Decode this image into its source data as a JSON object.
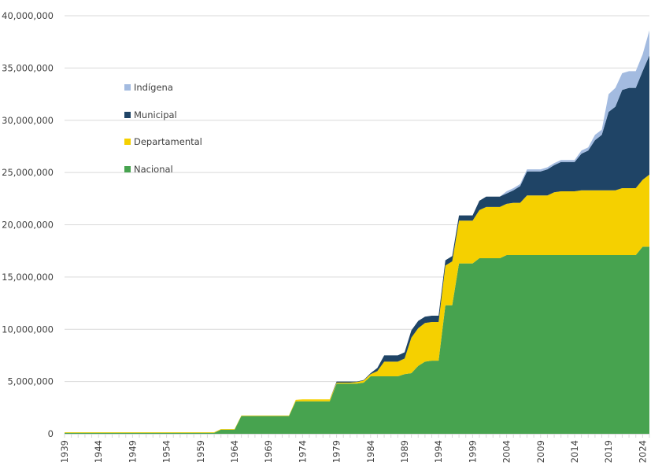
{
  "chart_data": {
    "type": "area",
    "stacked": true,
    "title": "",
    "xlabel": "",
    "ylabel": "",
    "ylim": [
      0,
      40000000
    ],
    "yticks": [
      0,
      5000000,
      10000000,
      15000000,
      20000000,
      25000000,
      30000000,
      35000000,
      40000000
    ],
    "ytick_labels": [
      "0",
      "5,000,000",
      "10,000,000",
      "15,000,000",
      "20,000,000",
      "25,000,000",
      "30,000,000",
      "35,000,000",
      "40,000,000"
    ],
    "xlim": [
      1939,
      2025
    ],
    "xtick_labels": [
      "1939",
      "1944",
      "1949",
      "1954",
      "1959",
      "1964",
      "1969",
      "1974",
      "1979",
      "1984",
      "1989",
      "1994",
      "1999",
      "2004",
      "2009",
      "2014",
      "2019",
      "2024"
    ],
    "grid": "horizontal",
    "legend_position": "upper-left inside",
    "legend": [
      "Indígena",
      "Municipal",
      "Departamental",
      "Nacional"
    ],
    "x": [
      1939,
      1940,
      1941,
      1942,
      1943,
      1944,
      1945,
      1946,
      1947,
      1948,
      1949,
      1950,
      1951,
      1952,
      1953,
      1954,
      1955,
      1956,
      1957,
      1958,
      1959,
      1960,
      1961,
      1962,
      1963,
      1964,
      1965,
      1966,
      1967,
      1968,
      1969,
      1970,
      1971,
      1972,
      1973,
      1974,
      1975,
      1976,
      1977,
      1978,
      1979,
      1980,
      1981,
      1982,
      1983,
      1984,
      1985,
      1986,
      1987,
      1988,
      1989,
      1990,
      1991,
      1992,
      1993,
      1994,
      1995,
      1996,
      1997,
      1998,
      1999,
      2000,
      2001,
      2002,
      2003,
      2004,
      2005,
      2006,
      2007,
      2008,
      2009,
      2010,
      2011,
      2012,
      2013,
      2014,
      2015,
      2016,
      2017,
      2018,
      2019,
      2020,
      2021,
      2022,
      2023,
      2024,
      2025
    ],
    "series": [
      {
        "name": "Nacional",
        "color": "#47a34f",
        "values_millions": [
          0.1,
          0.1,
          0.1,
          0.1,
          0.1,
          0.1,
          0.1,
          0.1,
          0.1,
          0.1,
          0.1,
          0.1,
          0.1,
          0.1,
          0.1,
          0.1,
          0.1,
          0.1,
          0.1,
          0.1,
          0.1,
          0.1,
          0.1,
          0.4,
          0.4,
          0.4,
          1.7,
          1.7,
          1.7,
          1.7,
          1.7,
          1.7,
          1.7,
          1.7,
          3.1,
          3.1,
          3.1,
          3.1,
          3.1,
          3.1,
          4.8,
          4.8,
          4.8,
          4.8,
          4.9,
          5.5,
          5.5,
          5.5,
          5.5,
          5.5,
          5.7,
          5.8,
          6.5,
          6.9,
          7.0,
          7.0,
          12.3,
          12.3,
          16.3,
          16.3,
          16.3,
          16.8,
          16.8,
          16.8,
          16.8,
          17.1,
          17.1,
          17.1,
          17.1,
          17.1,
          17.1,
          17.1,
          17.1,
          17.1,
          17.1,
          17.1,
          17.1,
          17.1,
          17.1,
          17.1,
          17.1,
          17.1,
          17.1,
          17.1,
          17.1,
          17.9,
          17.9
        ]
      },
      {
        "name": "Departamental",
        "color": "#f5d000",
        "values_millions": [
          0.05,
          0.05,
          0.05,
          0.05,
          0.05,
          0.05,
          0.05,
          0.05,
          0.05,
          0.05,
          0.05,
          0.05,
          0.05,
          0.05,
          0.05,
          0.05,
          0.05,
          0.05,
          0.05,
          0.05,
          0.05,
          0.05,
          0.05,
          0.05,
          0.05,
          0.05,
          0.05,
          0.05,
          0.05,
          0.05,
          0.05,
          0.05,
          0.05,
          0.05,
          0.15,
          0.2,
          0.2,
          0.2,
          0.2,
          0.2,
          0.1,
          0.1,
          0.1,
          0.15,
          0.2,
          0.2,
          0.5,
          1.4,
          1.4,
          1.4,
          1.5,
          3.4,
          3.6,
          3.7,
          3.7,
          3.7,
          3.8,
          4.2,
          4.1,
          4.1,
          4.1,
          4.6,
          4.9,
          4.9,
          4.9,
          4.9,
          5.0,
          5.0,
          5.7,
          5.7,
          5.7,
          5.7,
          6.0,
          6.1,
          6.1,
          6.1,
          6.2,
          6.2,
          6.2,
          6.2,
          6.2,
          6.2,
          6.4,
          6.4,
          6.4,
          6.4,
          6.9
        ]
      },
      {
        "name": "Municipal",
        "color": "#1f4466",
        "values_millions": [
          0,
          0,
          0,
          0,
          0,
          0,
          0,
          0,
          0,
          0,
          0,
          0,
          0,
          0,
          0,
          0,
          0,
          0,
          0,
          0,
          0,
          0,
          0,
          0,
          0,
          0,
          0,
          0,
          0,
          0,
          0,
          0,
          0,
          0,
          0,
          0,
          0,
          0,
          0,
          0,
          0.1,
          0.1,
          0.1,
          0.05,
          0.05,
          0.1,
          0.3,
          0.6,
          0.6,
          0.6,
          0.6,
          0.7,
          0.7,
          0.6,
          0.6,
          0.6,
          0.5,
          0.5,
          0.5,
          0.5,
          0.5,
          0.9,
          1.0,
          1.0,
          1.0,
          1.0,
          1.2,
          1.6,
          2.3,
          2.3,
          2.3,
          2.5,
          2.6,
          2.8,
          2.8,
          2.8,
          3.5,
          3.8,
          4.8,
          5.3,
          7.5,
          8.0,
          9.4,
          9.6,
          9.6,
          10.4,
          11.4
        ]
      },
      {
        "name": "Indígena",
        "color": "#a3bbe0",
        "values_millions": [
          0,
          0,
          0,
          0,
          0,
          0,
          0,
          0,
          0,
          0,
          0,
          0,
          0,
          0,
          0,
          0,
          0,
          0,
          0,
          0,
          0,
          0,
          0,
          0,
          0,
          0,
          0,
          0,
          0,
          0,
          0,
          0,
          0,
          0,
          0,
          0,
          0,
          0,
          0,
          0,
          0,
          0,
          0,
          0,
          0,
          0,
          0,
          0,
          0,
          0,
          0,
          0,
          0,
          0,
          0,
          0,
          0,
          0,
          0,
          0,
          0,
          0,
          0,
          0,
          0,
          0.2,
          0.2,
          0.2,
          0.2,
          0.2,
          0.2,
          0.2,
          0.2,
          0.2,
          0.2,
          0.2,
          0.3,
          0.3,
          0.5,
          0.5,
          1.7,
          1.8,
          1.6,
          1.6,
          1.6,
          1.6,
          2.4
        ]
      }
    ]
  }
}
